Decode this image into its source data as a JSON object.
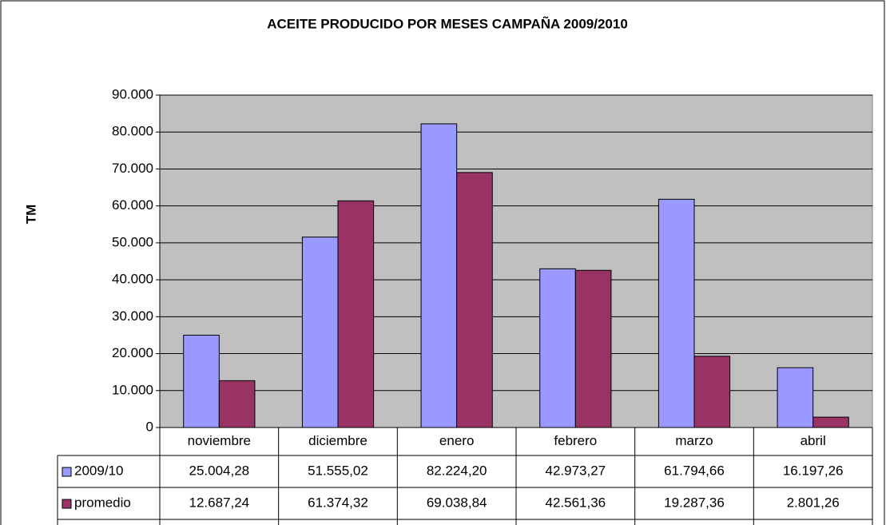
{
  "chart_data": {
    "type": "bar",
    "title": "ACEITE PRODUCIDO POR MESES CAMPAÑA 2009/2010",
    "y_label": "TM",
    "categories": [
      "noviembre",
      "diciembre",
      "enero",
      "febrero",
      "marzo",
      "abril"
    ],
    "series": [
      {
        "name": "2009/10",
        "color": "#9999ff",
        "values": [
          25004.28,
          51555.02,
          82224.2,
          42973.27,
          61794.66,
          16197.26
        ],
        "value_labels": [
          "25.004,28",
          "51.555,02",
          "82.224,20",
          "42.973,27",
          "61.794,66",
          "16.197,26"
        ]
      },
      {
        "name": "promedio",
        "color": "#993366",
        "values": [
          12687.24,
          61374.32,
          69038.84,
          42561.36,
          19287.36,
          2801.26
        ],
        "value_labels": [
          "12.687,24",
          "61.374,32",
          "69.038,84",
          "42.561,36",
          "19.287,36",
          "2.801,26"
        ]
      }
    ],
    "ylim": [
      0,
      90000
    ],
    "yticks": [
      0,
      {
        "value": 10000,
        "label": "10.000"
      },
      {
        "value": 20000,
        "label": "20.000"
      },
      {
        "value": 30000,
        "label": "30.000"
      },
      {
        "value": 40000,
        "label": "40.000"
      },
      {
        "value": 50000,
        "label": "50.000"
      },
      {
        "value": 60000,
        "label": "60.000"
      },
      {
        "value": 70000,
        "label": "70.000"
      },
      {
        "value": 80000,
        "label": "80.000"
      },
      {
        "value": 90000,
        "label": "90.000"
      }
    ],
    "grid": true,
    "plot_background": "#c0c0c0"
  }
}
